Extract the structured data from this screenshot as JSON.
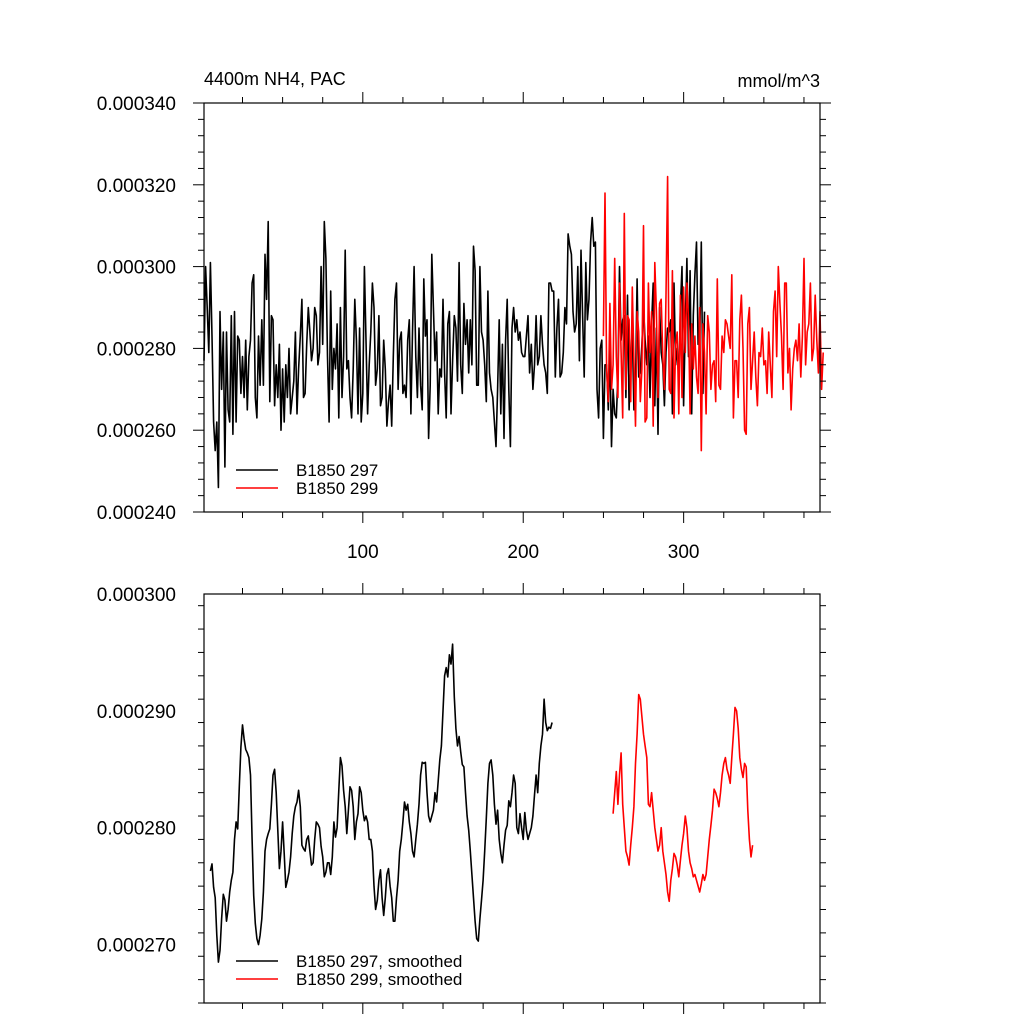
{
  "chart_data": [
    {
      "type": "line",
      "title": "4400m NH4, PAC",
      "units": "mmol/m^3",
      "xlim": [
        1,
        385
      ],
      "ylim": [
        0.00024,
        0.00034
      ],
      "xticks": [
        100,
        200,
        300
      ],
      "xtick_labels": [
        "100",
        "200",
        "300"
      ],
      "yticks": [
        0.00024,
        0.00026,
        0.00028,
        0.0003,
        0.00032,
        0.00034
      ],
      "ytick_labels": [
        "0.000240",
        "0.000260",
        "0.000280",
        "0.000300",
        "0.000320",
        "0.000340"
      ],
      "legend": {
        "position": "bottom-left",
        "entries": [
          "B1850 297",
          "B1850 299"
        ]
      },
      "series": [
        {
          "name": "B1850 297",
          "color": "#000000",
          "x_start": 1,
          "values": [
            0.000277,
            0.0003,
            0.00029,
            0.000279,
            0.000301,
            0.000283,
            0.000262,
            0.000255,
            0.000262,
            0.000246,
            0.000289,
            0.00027,
            0.000284,
            0.000251,
            0.000284,
            0.000265,
            0.000262,
            0.000288,
            0.000259,
            0.000289,
            0.000262,
            0.000283,
            0.000282,
            0.000269,
            0.000278,
            0.000268,
            0.000282,
            0.000265,
            0.000278,
            0.000282,
            0.000296,
            0.000298,
            0.000268,
            0.000263,
            0.000283,
            0.000271,
            0.000287,
            0.000271,
            0.000303,
            0.000292,
            0.000311,
            0.000267,
            0.000288,
            0.000287,
            0.000266,
            0.000276,
            0.000268,
            0.000281,
            0.00026,
            0.000275,
            0.000262,
            0.000276,
            0.000268,
            0.00028,
            0.000264,
            0.000268,
            0.000272,
            0.000284,
            0.000264,
            0.000275,
            0.000283,
            0.000292,
            0.000268,
            0.000269,
            0.000281,
            0.00029,
            0.000284,
            0.000277,
            0.00028,
            0.00029,
            0.000288,
            0.000276,
            0.000279,
            0.0003,
            0.000281,
            0.000311,
            0.000302,
            0.000278,
            0.000262,
            0.000294,
            0.00027,
            0.00028,
            0.000275,
            0.000286,
            0.000263,
            0.00029,
            0.000268,
            0.000278,
            0.000304,
            0.000275,
            0.000277,
            0.000268,
            0.000263,
            0.000275,
            0.000292,
            0.000282,
            0.000264,
            0.000285,
            0.000262,
            0.000269,
            0.0003,
            0.000282,
            0.000264,
            0.000276,
            0.000284,
            0.000296,
            0.00029,
            0.000271,
            0.000275,
            0.000288,
            0.000266,
            0.000268,
            0.000282,
            0.000275,
            0.000261,
            0.000267,
            0.000271,
            0.000261,
            0.000278,
            0.000292,
            0.000296,
            0.00027,
            0.000282,
            0.000284,
            0.000269,
            0.000271,
            0.000268,
            0.000282,
            0.000287,
            0.000264,
            0.000284,
            0.0003,
            0.000278,
            0.000268,
            0.000285,
            0.000271,
            0.000265,
            0.000297,
            0.000283,
            0.000287,
            0.000258,
            0.000271,
            0.000303,
            0.00029,
            0.000277,
            0.000284,
            0.000264,
            0.000275,
            0.000273,
            0.000292,
            0.000274,
            0.000263,
            0.000286,
            0.000289,
            0.000264,
            0.000277,
            0.000288,
            0.000285,
            0.000272,
            0.000301,
            0.000276,
            0.000269,
            0.000291,
            0.000281,
            0.000287,
            0.000274,
            0.000287,
            0.000276,
            0.000305,
            0.000299,
            0.000271,
            0.000271,
            0.0003,
            0.000284,
            0.000282,
            0.000276,
            0.000267,
            0.000294,
            0.000274,
            0.00027,
            0.000268,
            0.000262,
            0.000256,
            0.00027,
            0.000287,
            0.000264,
            0.000281,
            0.000258,
            0.000282,
            0.000292,
            0.00027,
            0.000256,
            0.000285,
            0.00029,
            0.000284,
            0.000287,
            0.000282,
            0.000284,
            0.000279,
            0.000278,
            0.000278,
            0.000283,
            0.000288,
            0.000274,
            0.000281,
            0.00027,
            0.000276,
            0.000288,
            0.000276,
            0.000278,
            0.000288,
            0.000281,
            0.000276,
            0.000274,
            0.000269,
            0.000296,
            0.000296,
            0.000294,
            0.000294,
            0.000273,
            0.000285,
            0.000292,
            0.000273,
            0.000274,
            0.000279,
            0.00029,
            0.000286,
            0.000308,
            0.000305,
            0.000303,
            0.000289,
            0.000284,
            0.000286,
            0.0003,
            0.000277,
            0.000304,
            0.000288,
            0.000273,
            0.000301,
            0.000287,
            0.000292,
            0.000306,
            0.000312,
            0.000305,
            0.000306,
            0.00027,
            0.000263,
            0.00028,
            0.000282,
            0.000258,
            0.000276,
            0.000276,
            0.000265,
            0.00028,
            0.000256,
            0.00027,
            0.000264,
            0.000263,
            0.000273,
            0.0003,
            0.000282,
            0.000287,
            0.000288,
            0.000268,
            0.000293,
            0.000265,
            0.000277,
            0.000285,
            0.000265,
            0.000271,
            0.000297,
            0.000273,
            0.000274,
            0.000281,
            0.00029,
            0.000282,
            0.000276,
            0.000283,
            0.000268,
            0.000286,
            0.000296,
            0.000266,
            0.000285,
            0.000259,
            0.00029,
            0.000279,
            0.000276,
            0.000266,
            0.000279,
            0.000285,
            0.000284,
            0.000287,
            0.000264,
            0.000296,
            0.000276,
            0.00028,
            0.000272,
            0.00029,
            0.0003,
            0.000266,
            0.000286,
            0.000302,
            0.000278,
            0.000299,
            0.000264,
            0.000288,
            0.000298,
            0.000306,
            0.000281,
            0.000281,
            0.000306,
            0.000269,
            0.000289
          ]
        },
        {
          "name": "B1850 299",
          "color": "#ff0000",
          "x_start": 250,
          "values": [
            0.000283,
            0.000318,
            0.000275,
            0.000267,
            0.000291,
            0.00027,
            0.000276,
            0.000302,
            0.000278,
            0.000268,
            0.000296,
            0.000279,
            0.000263,
            0.000313,
            0.00027,
            0.000288,
            0.000287,
            0.000267,
            0.000295,
            0.000277,
            0.000261,
            0.000289,
            0.000284,
            0.000267,
            0.000275,
            0.00031,
            0.000262,
            0.000263,
            0.000296,
            0.000279,
            0.000289,
            0.000261,
            0.000301,
            0.000289,
            0.000268,
            0.000291,
            0.000292,
            0.000278,
            0.00027,
            0.000293,
            0.000322,
            0.00027,
            0.000269,
            0.000299,
            0.000263,
            0.000281,
            0.000284,
            0.000264,
            0.000293,
            0.000268,
            0.000295,
            0.000279,
            0.000296,
            0.000287,
            0.000264,
            0.000286,
            0.000275,
            0.000283,
            0.000273,
            0.000269,
            0.00029,
            0.000255,
            0.000286,
            0.000279,
            0.000264,
            0.000288,
            0.000284,
            0.00027,
            0.000276,
            0.000277,
            0.000267,
            0.000297,
            0.000271,
            0.00027,
            0.000283,
            0.000279,
            0.000287,
            0.000286,
            0.000283,
            0.00028,
            0.000298,
            0.000263,
            0.000277,
            0.000277,
            0.000268,
            0.000287,
            0.000293,
            0.00028,
            0.00026,
            0.000259,
            0.000286,
            0.00029,
            0.00027,
            0.000277,
            0.000284,
            0.000273,
            0.000266,
            0.000279,
            0.000278,
            0.000285,
            0.000276,
            0.000277,
            0.000269,
            0.000284,
            0.000276,
            0.000268,
            0.000289,
            0.000294,
            0.000278,
            0.0003,
            0.000291,
            0.000283,
            0.00027,
            0.000296,
            0.000296,
            0.000274,
            0.00028,
            0.000265,
            0.000275,
            0.00028,
            0.000282,
            0.000277,
            0.000286,
            0.000273,
            0.000283,
            0.000302,
            0.000276,
            0.000284,
            0.000286,
            0.000296,
            0.000277,
            0.00028,
            0.000293,
            0.000282,
            0.000274,
            0.000289,
            0.00027,
            0.000279
          ]
        }
      ]
    },
    {
      "type": "line",
      "title": "",
      "xlim": [
        1,
        385
      ],
      "ylim": [
        0.000265,
        0.0003
      ],
      "xticks": [
        100,
        200,
        300
      ],
      "yticks": [
        0.00027,
        0.00028,
        0.00029,
        0.0003
      ],
      "ytick_labels": [
        "0.000270",
        "0.000280",
        "0.000290",
        "0.000300"
      ],
      "legend": {
        "position": "bottom-left",
        "entries": [
          "B1850 297, smoothed",
          "B1850 299, smoothed"
        ]
      },
      "series": [
        {
          "name": "B1850 297, smoothed",
          "color": "#000000",
          "x_start": 5,
          "values": [
            0.0002763,
            0.0002769,
            0.0002749,
            0.000274,
            0.0002708,
            0.0002685,
            0.0002695,
            0.0002722,
            0.0002743,
            0.0002738,
            0.000272,
            0.000273,
            0.0002745,
            0.0002755,
            0.0002762,
            0.000279,
            0.0002805,
            0.0002799,
            0.0002835,
            0.0002869,
            0.0002888,
            0.0002876,
            0.0002867,
            0.0002864,
            0.000286,
            0.0002845,
            0.000279,
            0.0002742,
            0.0002718,
            0.0002705,
            0.00027,
            0.0002708,
            0.0002722,
            0.0002745,
            0.000278,
            0.000279,
            0.0002795,
            0.0002799,
            0.000282,
            0.0002845,
            0.000285,
            0.000283,
            0.0002798,
            0.0002765,
            0.000278,
            0.0002805,
            0.0002778,
            0.0002749,
            0.0002755,
            0.0002762,
            0.0002775,
            0.0002795,
            0.000281,
            0.0002818,
            0.0002822,
            0.0002832,
            0.0002818,
            0.0002785,
            0.0002782,
            0.000278,
            0.000279,
            0.0002793,
            0.000278,
            0.0002768,
            0.000277,
            0.000279,
            0.0002805,
            0.0002803,
            0.00028,
            0.0002784,
            0.0002775,
            0.0002758,
            0.0002762,
            0.000277,
            0.000277,
            0.000276,
            0.0002775,
            0.0002805,
            0.0002792,
            0.00028,
            0.0002832,
            0.000286,
            0.0002853,
            0.0002832,
            0.0002818,
            0.0002795,
            0.0002815,
            0.0002835,
            0.0002832,
            0.0002818,
            0.000279,
            0.0002805,
            0.0002812,
            0.0002835,
            0.000283,
            0.0002815,
            0.0002806,
            0.000281,
            0.0002805,
            0.000279,
            0.000279,
            0.000278,
            0.000275,
            0.000273,
            0.0002738,
            0.0002755,
            0.0002764,
            0.000274,
            0.0002725,
            0.000274,
            0.000276,
            0.0002765,
            0.000275,
            0.000274,
            0.000272,
            0.000272,
            0.000274,
            0.0002755,
            0.000278,
            0.000279,
            0.0002805,
            0.0002822,
            0.0002815,
            0.000282,
            0.0002805,
            0.0002795,
            0.000278,
            0.0002775,
            0.000279,
            0.0002803,
            0.000282,
            0.0002845,
            0.0002856,
            0.0002855,
            0.0002856,
            0.000283,
            0.000281,
            0.0002805,
            0.000281,
            0.0002815,
            0.000283,
            0.0002822,
            0.000284,
            0.0002858,
            0.000287,
            0.00029,
            0.000293,
            0.0002937,
            0.0002929,
            0.0002948,
            0.000294,
            0.0002957,
            0.0002912,
            0.0002885,
            0.000287,
            0.0002878,
            0.0002865,
            0.0002854,
            0.0002852,
            0.000283,
            0.000281,
            0.0002798,
            0.000278,
            0.000276,
            0.000274,
            0.000272,
            0.0002705,
            0.0002703,
            0.0002722,
            0.0002738,
            0.0002755,
            0.000278,
            0.0002808,
            0.0002838,
            0.0002855,
            0.0002858,
            0.0002845,
            0.000282,
            0.0002803,
            0.0002815,
            0.000279,
            0.0002778,
            0.000277,
            0.0002785,
            0.0002798,
            0.0002802,
            0.0002823,
            0.0002818,
            0.000283,
            0.0002845,
            0.0002838,
            0.00028,
            0.0002795,
            0.0002812,
            0.00028,
            0.000279,
            0.0002813,
            0.0002798,
            0.000279,
            0.0002795,
            0.00028,
            0.000281,
            0.0002828,
            0.0002845,
            0.000283,
            0.0002855,
            0.000287,
            0.000288,
            0.000291,
            0.000289,
            0.0002883,
            0.0002886,
            0.0002885,
            0.000289
          ]
        },
        {
          "name": "B1850 299, smoothed",
          "color": "#ff0000",
          "x_start": 256,
          "values": [
            0.0002812,
            0.000283,
            0.0002848,
            0.000282,
            0.0002845,
            0.0002864,
            0.000282,
            0.00028,
            0.000278,
            0.0002775,
            0.0002768,
            0.0002785,
            0.00028,
            0.0002818,
            0.0002855,
            0.000288,
            0.0002914,
            0.000291,
            0.0002895,
            0.000288,
            0.000287,
            0.000286,
            0.000282,
            0.0002818,
            0.000283,
            0.0002815,
            0.00028,
            0.000279,
            0.000278,
            0.0002785,
            0.00028,
            0.000278,
            0.000277,
            0.000276,
            0.0002745,
            0.0002737,
            0.0002755,
            0.0002765,
            0.0002778,
            0.0002775,
            0.0002768,
            0.0002758,
            0.0002772,
            0.0002785,
            0.0002795,
            0.000281,
            0.00028,
            0.000278,
            0.000277,
            0.0002765,
            0.0002758,
            0.000276,
            0.0002755,
            0.000275,
            0.0002745,
            0.0002752,
            0.000276,
            0.0002755,
            0.000276,
            0.0002775,
            0.000279,
            0.0002802,
            0.0002815,
            0.0002833,
            0.000283,
            0.0002825,
            0.0002818,
            0.000283,
            0.0002845,
            0.0002855,
            0.000286,
            0.000285,
            0.0002845,
            0.0002838,
            0.000286,
            0.000288,
            0.0002903,
            0.00029,
            0.0002885,
            0.000286,
            0.000285,
            0.0002843,
            0.0002855,
            0.0002852,
            0.0002815,
            0.000279,
            0.0002775,
            0.0002785
          ]
        }
      ]
    }
  ]
}
